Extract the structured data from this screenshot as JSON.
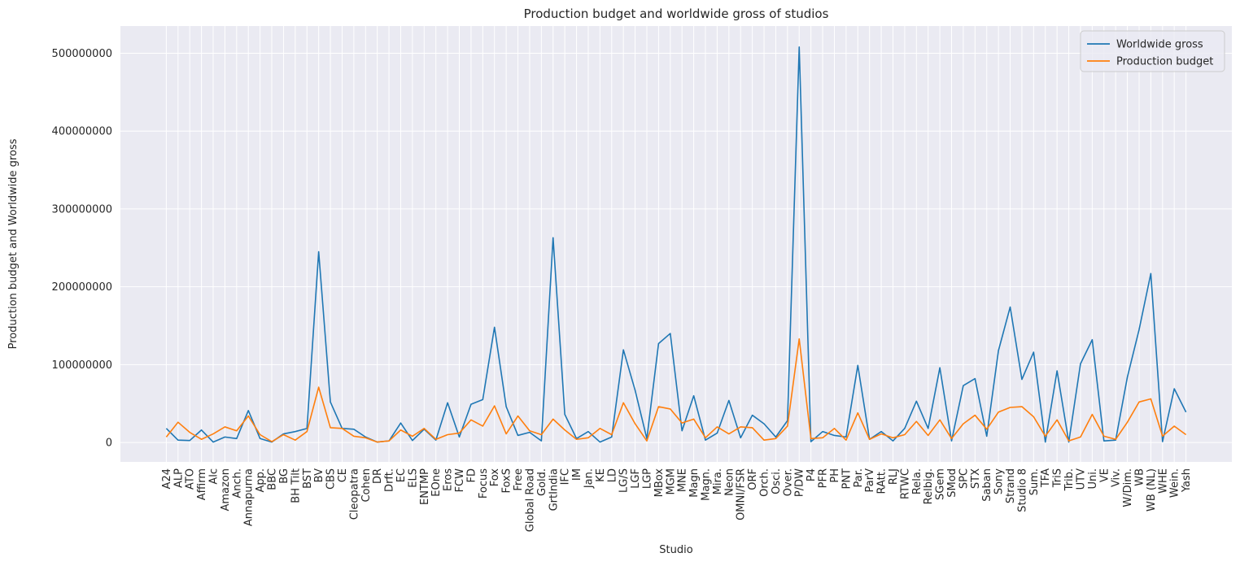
{
  "chart_data": {
    "type": "line",
    "title": "Production budget and worldwide gross of studios",
    "xlabel": "Studio",
    "ylabel": "Production budget and Worldwide gross",
    "ylim": [
      -25000000,
      535000000
    ],
    "yticks": [
      0,
      100000000,
      200000000,
      300000000,
      400000000,
      500000000
    ],
    "ytick_labels": [
      "0",
      "100000000",
      "200000000",
      "300000000",
      "400000000",
      "500000000"
    ],
    "grid": true,
    "legend_position": "top-right",
    "categories": [
      "A24",
      "ALP",
      "ATO",
      "Affirm",
      "Alc",
      "Amazon",
      "Anch.",
      "Annapurna",
      "App.",
      "BBC",
      "BG",
      "BH Tilt",
      "BST",
      "BV",
      "CBS",
      "CE",
      "Cleopatra",
      "Cohen",
      "DR",
      "Drft.",
      "EC",
      "ELS",
      "ENTMP",
      "EOne",
      "Eros",
      "FCW",
      "FD",
      "Focus",
      "Fox",
      "FoxS",
      "Free",
      "Global Road",
      "Gold.",
      "GrtIndia",
      "IFC",
      "IM",
      "Jan.",
      "KE",
      "LD",
      "LG/S",
      "LGF",
      "LGP",
      "MBox",
      "MGM",
      "MNE",
      "Magn",
      "Magn.",
      "Mira.",
      "Neon",
      "OMNI/FSR",
      "ORF",
      "Orch.",
      "Osci.",
      "Over.",
      "P/DW",
      "P4",
      "PFR",
      "PH",
      "PNT",
      "Par.",
      "ParV",
      "RAtt.",
      "RLJ",
      "RTWC",
      "Rela.",
      "Relbig.",
      "SGem",
      "SMod",
      "SPC",
      "STX",
      "Saban",
      "Sony",
      "Strand",
      "Studio 8",
      "Sum.",
      "TFA",
      "TriS",
      "Trib.",
      "UTV",
      "Uni.",
      "VE",
      "Viv.",
      "W/Dim.",
      "WB",
      "WB (NL)",
      "WHE",
      "Wein.",
      "Yash"
    ],
    "series": [
      {
        "name": "Worldwide gross",
        "color": "#1f77b4",
        "values": [
          18000000,
          3000000,
          2500000,
          16000000,
          500000,
          7000000,
          5000000,
          41000000,
          5000000,
          500000,
          11000000,
          14000000,
          18000000,
          245000000,
          52000000,
          18000000,
          17000000,
          7000000,
          500000,
          2000000,
          25000000,
          2500000,
          17000000,
          3000000,
          51000000,
          7000000,
          49000000,
          55000000,
          148000000,
          46000000,
          9000000,
          13000000,
          2000000,
          263000000,
          36000000,
          5000000,
          14000000,
          500000,
          7000000,
          119000000,
          67000000,
          5000000,
          127000000,
          140000000,
          15000000,
          60000000,
          3000000,
          12000000,
          54000000,
          6000000,
          35000000,
          24000000,
          7000000,
          28000000,
          508000000,
          1000000,
          14000000,
          9000000,
          7000000,
          99000000,
          4000000,
          14000000,
          2000000,
          18000000,
          53000000,
          18000000,
          96000000,
          2000000,
          73000000,
          82000000,
          8000000,
          118000000,
          174000000,
          81000000,
          116000000,
          500000,
          92000000,
          500000,
          101000000,
          132000000,
          2000000,
          3000000,
          84000000,
          145000000,
          217000000,
          1000000,
          69000000,
          39000000
        ]
      },
      {
        "name": "Production budget",
        "color": "#ff7f0e",
        "values": [
          7000000,
          26000000,
          13000000,
          4000000,
          11000000,
          20000000,
          15000000,
          34000000,
          10000000,
          1000000,
          10000000,
          3000000,
          14000000,
          71000000,
          19000000,
          18000000,
          8000000,
          6000000,
          500000,
          2000000,
          16000000,
          8000000,
          18000000,
          4000000,
          10000000,
          12000000,
          29000000,
          21000000,
          47000000,
          11000000,
          34000000,
          15000000,
          10000000,
          30000000,
          16000000,
          4000000,
          6000000,
          18000000,
          10000000,
          51000000,
          24000000,
          2000000,
          46000000,
          43000000,
          25000000,
          30000000,
          6000000,
          20000000,
          11000000,
          20000000,
          19000000,
          3000000,
          5000000,
          21000000,
          133000000,
          5000000,
          6000000,
          18000000,
          3000000,
          38000000,
          4000000,
          11000000,
          6000000,
          10000000,
          27000000,
          9000000,
          29000000,
          5000000,
          24000000,
          35000000,
          17000000,
          39000000,
          45000000,
          46000000,
          33000000,
          8000000,
          29000000,
          2000000,
          7000000,
          36000000,
          8000000,
          4000000,
          26000000,
          52000000,
          56000000,
          8000000,
          21000000,
          10000000
        ]
      }
    ]
  }
}
